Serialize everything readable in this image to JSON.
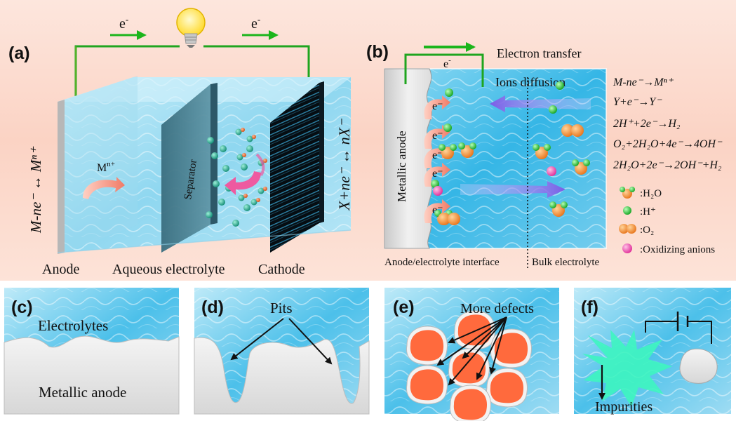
{
  "panels": {
    "a": {
      "tag": "(a)",
      "electron_left": "e",
      "electron_right": "e",
      "electron_sup": "-",
      "anode_reaction": "M-ne⁻ ↔ Mⁿ⁺",
      "cathode_reaction": "X+ne⁻ ↔ nX⁻",
      "ion_base": "M",
      "ion_sup": "n+",
      "separator": "Separator",
      "label_anode": "Anode",
      "label_electrolyte": "Aqueous electrolyte",
      "label_cathode": "Cathode"
    },
    "b": {
      "tag": "(b)",
      "electron_transfer": "Electron transfer",
      "electron_wire": "e",
      "electron_sup": "-",
      "ions_diffusion": "Ions diffusion",
      "metallic_anode": "Metallic anode",
      "interface": "Anode/electrolyte  interface",
      "bulk": "Bulk electrolyte",
      "electron_marks": [
        "e⁻",
        "e⁻",
        "e⁻",
        "e⁻",
        "e⁻"
      ],
      "reactions": [
        "M-ne⁻→Mⁿ⁺",
        "Y+e⁻→Y⁻",
        "2H⁺+2e⁻→H₂",
        "O₂+2H₂O+4e⁻→4OH⁻",
        "2H₂O+2e⁻→2OH⁻+H₂"
      ],
      "legend": [
        {
          "label": ":H₂O",
          "kind": "h2o"
        },
        {
          "label": ":H⁺",
          "kind": "h"
        },
        {
          "label": ":O₂",
          "kind": "o2"
        },
        {
          "label": ":Oxidizing anions",
          "kind": "anion"
        }
      ]
    },
    "c": {
      "tag": "(c)",
      "electrolytes": "Electrolytes",
      "anode": "Metallic anode"
    },
    "d": {
      "tag": "(d)",
      "pits": "Pits"
    },
    "e": {
      "tag": "(e)",
      "defects": "More defects"
    },
    "f": {
      "tag": "(f)",
      "impurities": "Impurities"
    }
  },
  "colors": {
    "water_light": "#d9f3fb",
    "water": "#5fc6ea",
    "water_deep": "#1a97cf",
    "wire": "#1fa51f",
    "arrow_green": "#1bb51b",
    "grain": "#ff6a3d",
    "impurity": "#3ef5c0",
    "h_plus": "#19b02a",
    "oxygen": "#f08a24",
    "anion": "#ee3aa7",
    "pink_arrow": "#f06aa5",
    "purple_arrow": "#8a6ae8",
    "bulb": "#ffe84a"
  },
  "icons": [
    "light-bulb-icon",
    "arrow-right-icon",
    "curved-arrow-icon"
  ]
}
